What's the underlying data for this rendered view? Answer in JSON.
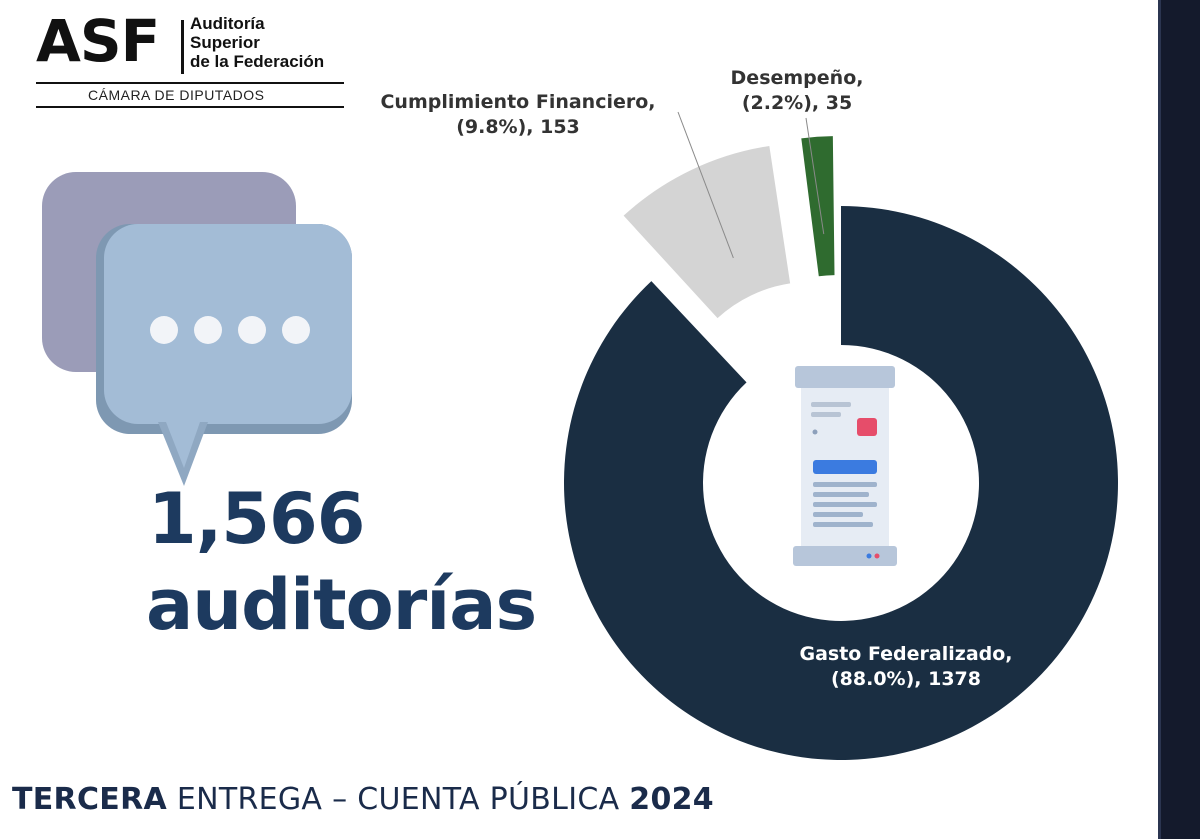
{
  "logo": {
    "abbr": "ASF",
    "name_lines": [
      "Auditoría",
      "Superior",
      "de la Federación"
    ],
    "subtitle": "CÁMARA DE DIPUTADOS"
  },
  "headline": {
    "number": "1,566",
    "label": "auditorías"
  },
  "icons": {
    "chat": "chat-bubbles-icon",
    "document": "document-report-icon"
  },
  "footer": {
    "part1": "TERCERA",
    "part2": " ENTREGA – CUENTA PÚBLICA ",
    "part3": "2024"
  },
  "colors": {
    "navy": "#1a2e42",
    "light_gray": "#d4d4d4",
    "green": "#2f6b2f",
    "headline": "#1d3a5f"
  },
  "chart_data": {
    "type": "pie",
    "donut": true,
    "slices": [
      {
        "category": "Gasto Federalizado",
        "percent": 88.0,
        "value": 1378,
        "color": "#1a2e42",
        "exploded": false
      },
      {
        "category": "Cumplimiento Financiero",
        "percent": 9.8,
        "value": 153,
        "color": "#d4d4d4",
        "exploded": true
      },
      {
        "category": "Desempeño",
        "percent": 2.2,
        "value": 35,
        "color": "#2f6b2f",
        "exploded": true
      }
    ],
    "labels": [
      {
        "line1": "Gasto Federalizado,",
        "line2": "(88.0%), 1378"
      },
      {
        "line1": "Cumplimiento Financiero,",
        "line2": "(9.8%), 153"
      },
      {
        "line1": "Desempeño,",
        "line2": "(2.2%), 35"
      }
    ]
  }
}
